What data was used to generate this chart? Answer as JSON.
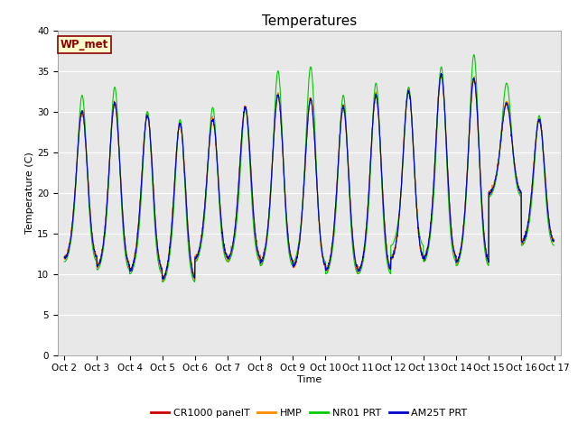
{
  "title": "Temperatures",
  "xlabel": "Time",
  "ylabel": "Temperature (C)",
  "ylim": [
    0,
    40
  ],
  "yticks": [
    0,
    5,
    10,
    15,
    20,
    25,
    30,
    35,
    40
  ],
  "num_days": 15,
  "points_per_day": 144,
  "fig_bg_color": "#ffffff",
  "plot_bg_color": "#e8e8e8",
  "legend_label": "WP_met",
  "series_labels": [
    "CR1000 panelT",
    "HMP",
    "NR01 PRT",
    "AM25T PRT"
  ],
  "series_colors": [
    "#cc0000",
    "#ff8800",
    "#00cc00",
    "#0000cc"
  ],
  "title_fontsize": 11,
  "axis_fontsize": 8,
  "tick_fontsize": 7.5,
  "grid_color": "#ffffff",
  "daily_max": [
    30.0,
    31.0,
    29.5,
    28.5,
    29.0,
    30.5,
    32.0,
    31.5,
    30.5,
    32.0,
    32.5,
    34.5,
    34.0,
    31.0,
    29.0
  ],
  "daily_min": [
    12.0,
    11.0,
    10.5,
    9.5,
    12.0,
    12.0,
    11.5,
    11.0,
    10.5,
    10.5,
    12.0,
    12.0,
    11.5,
    20.0,
    14.0
  ],
  "green_extra_max": [
    32.0,
    33.0,
    30.0,
    29.0,
    30.5,
    30.5,
    35.0,
    35.5,
    32.0,
    33.5,
    33.0,
    35.5,
    37.0,
    33.5,
    29.5
  ],
  "green_extra_min": [
    11.5,
    10.5,
    10.0,
    9.0,
    11.5,
    11.5,
    11.0,
    11.5,
    10.0,
    10.0,
    13.5,
    11.5,
    11.0,
    19.5,
    13.5
  ]
}
